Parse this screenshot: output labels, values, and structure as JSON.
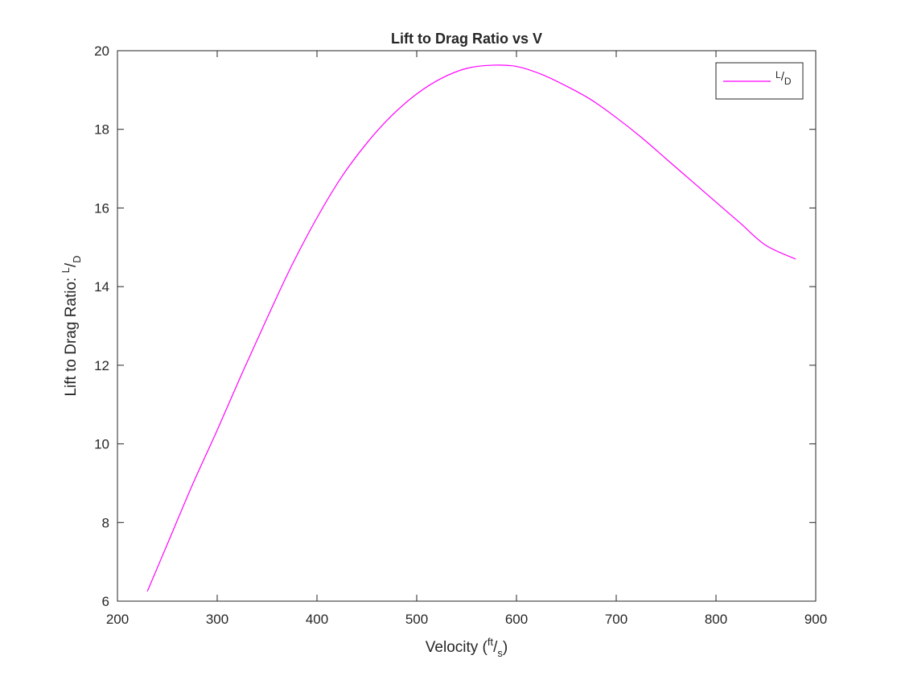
{
  "chart_data": {
    "type": "line",
    "title": "Lift to Drag Ratio vs V",
    "xlabel": {
      "prefix": "Velocity (",
      "numerator": "ft",
      "slash": "/",
      "denominator": "s",
      "suffix": ")"
    },
    "ylabel": {
      "prefix": "Lift to Drag Ratio: ",
      "numerator": "L",
      "slash": "/",
      "denominator": "D"
    },
    "xlim": [
      200,
      900
    ],
    "ylim": [
      6,
      20
    ],
    "xticks": [
      200,
      300,
      400,
      500,
      600,
      700,
      800,
      900
    ],
    "yticks": [
      6,
      8,
      10,
      12,
      14,
      16,
      18,
      20
    ],
    "grid": false,
    "legend_position": "top-right",
    "series": [
      {
        "legend": {
          "numerator": "L",
          "slash": "/",
          "denominator": "D"
        },
        "color": "#ff00ff",
        "x": [
          230,
          250,
          275,
          300,
          325,
          350,
          375,
          400,
          425,
          450,
          475,
          500,
          525,
          550,
          575,
          600,
          625,
          650,
          675,
          700,
          725,
          750,
          775,
          800,
          825,
          850,
          880
        ],
        "y": [
          6.25,
          7.45,
          8.95,
          10.35,
          11.8,
          13.2,
          14.55,
          15.75,
          16.8,
          17.65,
          18.35,
          18.9,
          19.3,
          19.55,
          19.63,
          19.6,
          19.4,
          19.1,
          18.75,
          18.3,
          17.8,
          17.25,
          16.7,
          16.15,
          15.6,
          15.05,
          14.7
        ]
      }
    ],
    "colors": {
      "axes": "#262626",
      "background": "#ffffff"
    }
  }
}
